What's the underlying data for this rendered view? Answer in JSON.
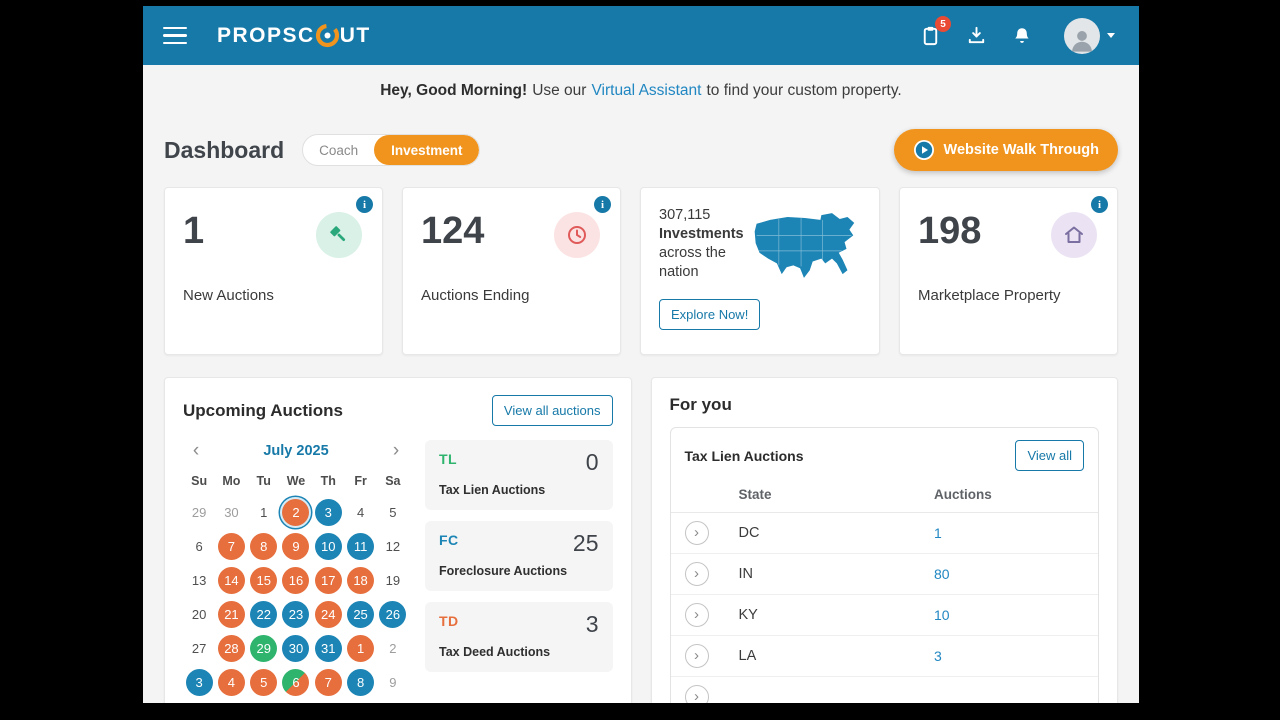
{
  "colors": {
    "navbar": "#1779A8",
    "orange": "#F0941D",
    "calOrange": "#E66F3D",
    "calBlue": "#1C85B5",
    "calGreen": "#2EB46D",
    "link": "#2187C2",
    "badge": "#E94B35",
    "info": "#1779A8"
  },
  "navbar": {
    "logo_pre": "PROPSC",
    "logo_post": "UT",
    "badge_count": "5"
  },
  "greeting": {
    "bold": "Hey, Good Morning!",
    "mid": "Use our",
    "link": "Virtual Assistant",
    "tail": "to find your custom property."
  },
  "header": {
    "title": "Dashboard",
    "toggle": {
      "coach": "Coach",
      "investment": "Investment"
    },
    "walkthrough": "Website Walk Through"
  },
  "stats": {
    "new_auctions": {
      "value": "1",
      "label": "New Auctions"
    },
    "auctions_ending": {
      "value": "124",
      "label": "Auctions Ending"
    },
    "investments": {
      "value": "307,115",
      "bold_label": "Investments",
      "sub_label": "across the nation",
      "button": "Explore Now!"
    },
    "marketplace": {
      "value": "198",
      "label": "Marketplace Property"
    }
  },
  "upcoming": {
    "title": "Upcoming Auctions",
    "view_all": "View all auctions",
    "calendar": {
      "month": "July 2025",
      "weekdays": [
        "Su",
        "Mo",
        "Tu",
        "We",
        "Th",
        "Fr",
        "Sa"
      ],
      "weeks": [
        [
          {
            "d": "29",
            "muted": true
          },
          {
            "d": "30",
            "muted": true
          },
          {
            "d": "1"
          },
          {
            "d": "2",
            "c": "orange",
            "today": true
          },
          {
            "d": "3",
            "c": "blue"
          },
          {
            "d": "4"
          },
          {
            "d": "5"
          }
        ],
        [
          {
            "d": "6"
          },
          {
            "d": "7",
            "c": "orange"
          },
          {
            "d": "8",
            "c": "orange"
          },
          {
            "d": "9",
            "c": "orange"
          },
          {
            "d": "10",
            "c": "blue"
          },
          {
            "d": "11",
            "c": "blue"
          },
          {
            "d": "12"
          }
        ],
        [
          {
            "d": "13"
          },
          {
            "d": "14",
            "c": "orange"
          },
          {
            "d": "15",
            "c": "orange"
          },
          {
            "d": "16",
            "c": "orange"
          },
          {
            "d": "17",
            "c": "orange"
          },
          {
            "d": "18",
            "c": "orange"
          },
          {
            "d": "19"
          }
        ],
        [
          {
            "d": "20"
          },
          {
            "d": "21",
            "c": "orange"
          },
          {
            "d": "22",
            "c": "blue"
          },
          {
            "d": "23",
            "c": "blue"
          },
          {
            "d": "24",
            "c": "orange"
          },
          {
            "d": "25",
            "c": "blue"
          },
          {
            "d": "26",
            "c": "blue"
          }
        ],
        [
          {
            "d": "27"
          },
          {
            "d": "28",
            "c": "orange"
          },
          {
            "d": "29",
            "c": "green"
          },
          {
            "d": "30",
            "c": "blue"
          },
          {
            "d": "31",
            "c": "blue"
          },
          {
            "d": "1",
            "c": "orange",
            "muted": true
          },
          {
            "d": "2",
            "muted": true
          }
        ],
        [
          {
            "d": "3",
            "c": "blue",
            "muted": true
          },
          {
            "d": "4",
            "c": "orange",
            "muted": true
          },
          {
            "d": "5",
            "c": "orange",
            "muted": true
          },
          {
            "d": "6",
            "c": "split",
            "muted": true
          },
          {
            "d": "7",
            "c": "orange",
            "muted": true
          },
          {
            "d": "8",
            "c": "blue",
            "muted": true
          },
          {
            "d": "9",
            "muted": true
          }
        ]
      ]
    },
    "types": [
      {
        "abbr": "TL",
        "label": "Tax Lien Auctions",
        "count": "0",
        "color": "green"
      },
      {
        "abbr": "FC",
        "label": "Foreclosure Auctions",
        "count": "25",
        "color": "blue"
      },
      {
        "abbr": "TD",
        "label": "Tax Deed Auctions",
        "count": "3",
        "color": "orange"
      }
    ]
  },
  "for_you": {
    "title": "For you",
    "section_title": "Tax Lien Auctions",
    "view_all": "View all",
    "columns": [
      "State",
      "Auctions"
    ],
    "rows": [
      {
        "state": "DC",
        "auctions": "1"
      },
      {
        "state": "IN",
        "auctions": "80"
      },
      {
        "state": "KY",
        "auctions": "10"
      },
      {
        "state": "LA",
        "auctions": "3"
      }
    ]
  }
}
